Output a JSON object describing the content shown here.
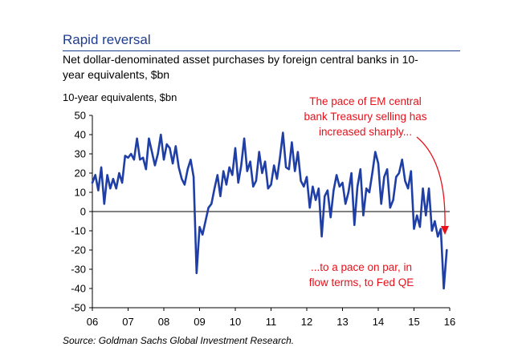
{
  "title": "Rapid reversal",
  "subtitle": "Net dollar-denominated asset purchases by foreign central banks in 10-year equivalents, $bn",
  "source": "Source: Goldman Sachs Global Investment Research.",
  "colors": {
    "title": "#1f3d8f",
    "series": "#1f3fa6",
    "annotation": "#e8101a"
  },
  "chart_data": {
    "type": "line",
    "ylabel": "10-year equivalents, $bn",
    "ylim": [
      -50,
      50
    ],
    "xlim": [
      2006,
      2016
    ],
    "y_ticks": [
      -50,
      -40,
      -30,
      -20,
      -10,
      0,
      10,
      20,
      30,
      40,
      50
    ],
    "x_tick_labels": [
      "06",
      "07",
      "08",
      "09",
      "10",
      "11",
      "12",
      "13",
      "14",
      "15",
      "16"
    ],
    "annotations": [
      {
        "text": "The pace of EM central bank Treasury selling has increased sharply...",
        "lines": [
          "The pace of EM central",
          "bank Treasury selling has",
          "increased sharply..."
        ]
      },
      {
        "text": "...to a pace on par, in flow terms, to Fed QE",
        "lines": [
          "...to a pace on par, in",
          "flow terms, to Fed QE"
        ]
      }
    ],
    "series": [
      {
        "x": [
          2006.0,
          2006.083,
          2006.167,
          2006.25,
          2006.333,
          2006.417,
          2006.5,
          2006.583,
          2006.667,
          2006.75,
          2006.833,
          2006.917,
          2007.0,
          2007.083,
          2007.167,
          2007.25,
          2007.333,
          2007.417,
          2007.5,
          2007.583,
          2007.667,
          2007.75,
          2007.833,
          2007.917,
          2008.0,
          2008.083,
          2008.167,
          2008.25,
          2008.333,
          2008.417,
          2008.5,
          2008.583,
          2008.667,
          2008.75,
          2008.833,
          2008.917,
          2009.0,
          2009.083,
          2009.167,
          2009.25,
          2009.333,
          2009.417,
          2009.5,
          2009.583,
          2009.667,
          2009.75,
          2009.833,
          2009.917,
          2010.0,
          2010.083,
          2010.167,
          2010.25,
          2010.333,
          2010.417,
          2010.5,
          2010.583,
          2010.667,
          2010.75,
          2010.833,
          2010.917,
          2011.0,
          2011.083,
          2011.167,
          2011.25,
          2011.333,
          2011.417,
          2011.5,
          2011.583,
          2011.667,
          2011.75,
          2011.833,
          2011.917,
          2012.0,
          2012.083,
          2012.167,
          2012.25,
          2012.333,
          2012.417,
          2012.5,
          2012.583,
          2012.667,
          2012.75,
          2012.833,
          2012.917,
          2013.0,
          2013.083,
          2013.167,
          2013.25,
          2013.333,
          2013.417,
          2013.5,
          2013.583,
          2013.667,
          2013.75,
          2013.833,
          2013.917,
          2014.0,
          2014.083,
          2014.167,
          2014.25,
          2014.333,
          2014.417,
          2014.5,
          2014.583,
          2014.667,
          2014.75,
          2014.833,
          2014.917,
          2015.0,
          2015.083,
          2015.167,
          2015.25,
          2015.333,
          2015.417,
          2015.5,
          2015.583,
          2015.667
        ],
        "y": [
          15,
          19,
          11,
          23,
          4,
          19,
          12,
          17,
          12,
          20,
          15,
          29,
          28,
          30,
          27,
          38,
          27,
          28,
          22,
          38,
          31,
          24,
          30,
          40,
          27,
          35,
          33,
          25,
          34,
          23,
          17,
          14,
          22,
          27,
          18,
          -32,
          -8,
          -12,
          -5,
          2,
          4,
          12,
          19,
          8,
          21,
          14,
          23,
          19,
          33,
          15,
          24,
          38,
          21,
          26,
          13,
          16,
          31,
          20,
          26,
          12,
          14,
          24,
          17,
          28,
          41,
          23,
          22,
          36,
          21,
          31,
          16,
          13,
          18,
          2,
          13,
          6,
          12,
          -13,
          8,
          11,
          -3,
          11,
          19,
          13,
          15,
          4,
          10,
          20,
          -7,
          13,
          22,
          -2,
          12,
          10,
          20,
          31,
          25,
          4,
          18,
          22,
          2,
          6,
          18,
          20,
          27,
          16,
          12,
          21,
          -9,
          -2,
          -8,
          12,
          -2,
          12,
          -10,
          -5,
          -13
        ]
      },
      {
        "x": [
          2015.667,
          2015.75,
          2015.833,
          2015.917
        ],
        "y": [
          -13,
          -9,
          -40,
          -20
        ]
      }
    ]
  }
}
